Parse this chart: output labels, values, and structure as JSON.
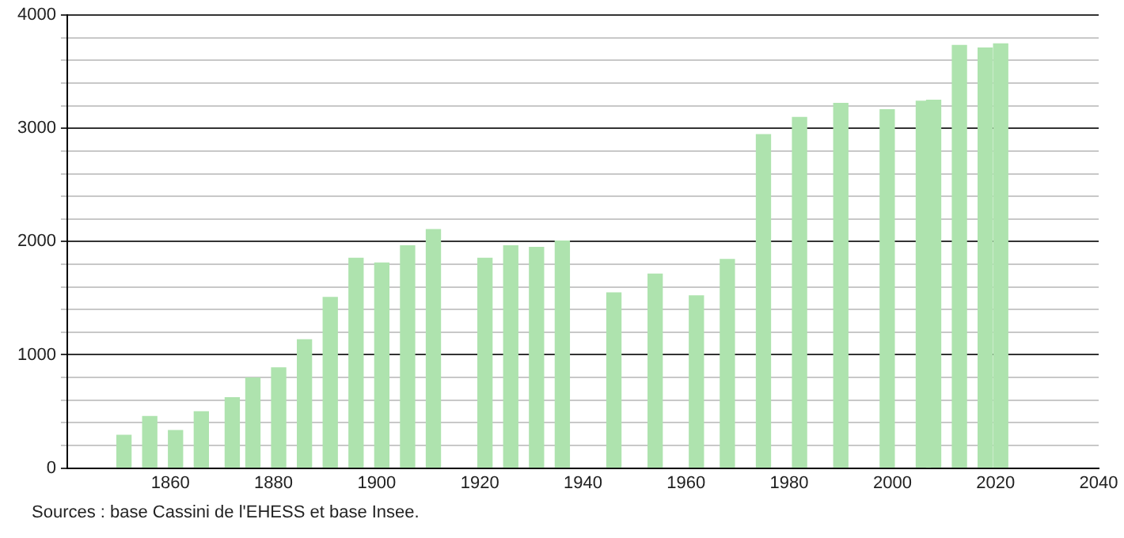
{
  "chart_data": {
    "type": "bar",
    "x": [
      1851,
      1856,
      1861,
      1866,
      1872,
      1876,
      1881,
      1886,
      1891,
      1896,
      1901,
      1906,
      1911,
      1921,
      1926,
      1931,
      1936,
      1946,
      1954,
      1962,
      1968,
      1975,
      1982,
      1990,
      1999,
      2006,
      2008,
      2013,
      2018,
      2021
    ],
    "values": [
      290,
      456,
      332,
      498,
      622,
      797,
      885,
      1134,
      1507,
      1853,
      1811,
      1963,
      2106,
      1853,
      1963,
      1949,
      2005,
      1548,
      1714,
      1521,
      1843,
      2945,
      3097,
      3221,
      3166,
      3240,
      3249,
      3733,
      3710,
      3747
    ],
    "color": "#aee3ae",
    "xlim": [
      1840,
      2040
    ],
    "xticks": [
      1860,
      1880,
      1900,
      1920,
      1940,
      1960,
      1980,
      2000,
      2020,
      2040
    ],
    "ylim": [
      0,
      4000
    ],
    "yticks": [
      0,
      {
        "value": 200,
        "label": null
      },
      {
        "value": 400,
        "label": null
      },
      {
        "value": 600,
        "label": null
      },
      {
        "value": 800,
        "label": null
      },
      1000,
      {
        "value": 1200,
        "label": null
      },
      {
        "value": 1400,
        "label": null
      },
      {
        "value": 1600,
        "label": null
      },
      {
        "value": 1800,
        "label": null
      },
      2000,
      {
        "value": 2200,
        "label": null
      },
      {
        "value": 2400,
        "label": null
      },
      {
        "value": 2600,
        "label": null
      },
      {
        "value": 2800,
        "label": null
      },
      3000,
      {
        "value": 3200,
        "label": null
      },
      {
        "value": 3400,
        "label": null
      },
      {
        "value": 3600,
        "label": null
      },
      {
        "value": 3800,
        "label": null
      },
      4000
    ],
    "grid": "y",
    "legend": false,
    "annotations": [
      "Sources : base Cassini de l'EHESS et base Insee."
    ]
  }
}
